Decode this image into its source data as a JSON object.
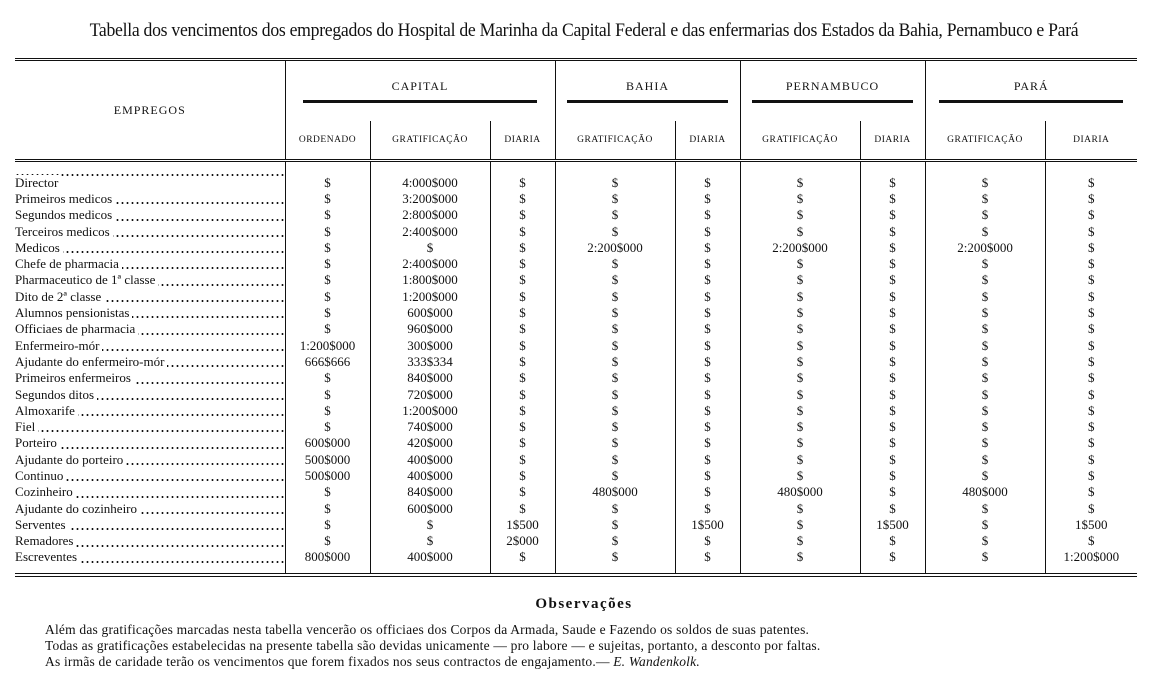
{
  "header": {
    "title": "Tabella dos vencimentos dos empregados do Hospital de Marinha da Capital Federal e das enfermarias dos Estados da Bahia, Pernambuco e Pará"
  },
  "table": {
    "first_header": "EMPREGOS",
    "groups": [
      {
        "name": "CAPITAL",
        "columns": [
          "ORDENADO",
          "GRATIFICAÇÃO",
          "DIARIA"
        ]
      },
      {
        "name": "BAHIA",
        "columns": [
          "GRATIFICAÇÃO",
          "DIARIA"
        ]
      },
      {
        "name": "PERNAMBUCO",
        "columns": [
          "GRATIFICAÇÃO",
          "DIARIA"
        ]
      },
      {
        "name": "PARÁ",
        "columns": [
          "GRATIFICAÇÃO",
          "DIARIA"
        ]
      }
    ],
    "rows": [
      [
        "Director",
        "$",
        "4:000$000",
        "$",
        "$",
        "$",
        "$",
        "$",
        "$",
        "$"
      ],
      [
        "Primeiros medicos",
        "$",
        "3:200$000",
        "$",
        "$",
        "$",
        "$",
        "$",
        "$",
        "$"
      ],
      [
        "Segundos medicos",
        "$",
        "2:800$000",
        "$",
        "$",
        "$",
        "$",
        "$",
        "$",
        "$"
      ],
      [
        "Terceiros medicos",
        "$",
        "2:400$000",
        "$",
        "$",
        "$",
        "$",
        "$",
        "$",
        "$"
      ],
      [
        "Medicos",
        "$",
        "$",
        "$",
        "2:200$000",
        "$",
        "2:200$000",
        "$",
        "2:200$000",
        "$"
      ],
      [
        "Chefe de pharmacia",
        "$",
        "2:400$000",
        "$",
        "$",
        "$",
        "$",
        "$",
        "$",
        "$"
      ],
      [
        "Pharmaceutico de 1ª classe",
        "$",
        "1:800$000",
        "$",
        "$",
        "$",
        "$",
        "$",
        "$",
        "$"
      ],
      [
        "Dito de 2ª classe",
        "$",
        "1:200$000",
        "$",
        "$",
        "$",
        "$",
        "$",
        "$",
        "$"
      ],
      [
        "Alumnos pensionistas",
        "$",
        "600$000",
        "$",
        "$",
        "$",
        "$",
        "$",
        "$",
        "$"
      ],
      [
        "Officiaes de pharmacia",
        "$",
        "960$000",
        "$",
        "$",
        "$",
        "$",
        "$",
        "$",
        "$"
      ],
      [
        "Enfermeiro-mór",
        "1:200$000",
        "300$000",
        "$",
        "$",
        "$",
        "$",
        "$",
        "$",
        "$"
      ],
      [
        "Ajudante do enfermeiro-mór",
        "666$666",
        "333$334",
        "$",
        "$",
        "$",
        "$",
        "$",
        "$",
        "$"
      ],
      [
        "Primeiros enfermeiros",
        "$",
        "840$000",
        "$",
        "$",
        "$",
        "$",
        "$",
        "$",
        "$"
      ],
      [
        "Segundos ditos",
        "$",
        "720$000",
        "$",
        "$",
        "$",
        "$",
        "$",
        "$",
        "$"
      ],
      [
        "Almoxarife",
        "$",
        "1:200$000",
        "$",
        "$",
        "$",
        "$",
        "$",
        "$",
        "$"
      ],
      [
        "Fiel",
        "$",
        "740$000",
        "$",
        "$",
        "$",
        "$",
        "$",
        "$",
        "$"
      ],
      [
        "Porteiro",
        "600$000",
        "420$000",
        "$",
        "$",
        "$",
        "$",
        "$",
        "$",
        "$"
      ],
      [
        "Ajudante do porteiro",
        "500$000",
        "400$000",
        "$",
        "$",
        "$",
        "$",
        "$",
        "$",
        "$"
      ],
      [
        "Continuo",
        "500$000",
        "400$000",
        "$",
        "$",
        "$",
        "$",
        "$",
        "$",
        "$"
      ],
      [
        "Cozinheiro",
        "$",
        "840$000",
        "$",
        "480$000",
        "$",
        "480$000",
        "$",
        "480$000",
        "$"
      ],
      [
        "Ajudante do cozinheiro",
        "$",
        "600$000",
        "$",
        "$",
        "$",
        "$",
        "$",
        "$",
        "$"
      ],
      [
        "Serventes",
        "$",
        "$",
        "1$500",
        "$",
        "1$500",
        "$",
        "1$500",
        "$",
        "1$500"
      ],
      [
        "Remadores",
        "$",
        "$",
        "2$000",
        "$",
        "$",
        "$",
        "$",
        "$",
        "$"
      ],
      [
        "Escreventes",
        "800$000",
        "400$000",
        "$",
        "$",
        "$",
        "$",
        "$",
        "$",
        "1:200$000"
      ]
    ]
  },
  "notes": {
    "title": "Observações",
    "lines": [
      "Além das gratificações marcadas nesta tabella vencerão os officiaes dos Corpos da Armada, Saude e Fazendo os soldos de suas patentes.",
      "Todas as gratificações estabelecidas na presente tabella são devidas unicamente — pro labore — e sujeitas, portanto, a desconto por faltas.",
      "As irmãs de caridade terão os vencimentos que forem fixados nos seus contractos de engajamento.—"
    ],
    "signature": "E. Wandenkolk."
  }
}
